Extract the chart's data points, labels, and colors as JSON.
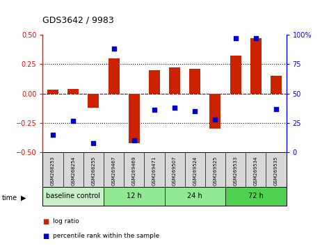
{
  "title": "GDS3642 / 9983",
  "samples": [
    "GSM268253",
    "GSM268254",
    "GSM268255",
    "GSM269467",
    "GSM269469",
    "GSM269471",
    "GSM269507",
    "GSM269524",
    "GSM269525",
    "GSM269533",
    "GSM269534",
    "GSM269535"
  ],
  "log_ratio": [
    0.03,
    0.04,
    -0.12,
    0.3,
    -0.42,
    0.2,
    0.22,
    0.21,
    -0.3,
    0.32,
    0.47,
    0.15
  ],
  "percentile_rank": [
    15,
    27,
    8,
    88,
    10,
    36,
    38,
    35,
    28,
    97,
    97,
    37
  ],
  "groups": [
    {
      "label": "baseline control",
      "start": 0,
      "end": 3
    },
    {
      "label": "12 h",
      "start": 3,
      "end": 6
    },
    {
      "label": "24 h",
      "start": 6,
      "end": 9
    },
    {
      "label": "72 h",
      "start": 9,
      "end": 12
    }
  ],
  "group_colors": [
    "#c8f0c8",
    "#90e890",
    "#90e890",
    "#50d050"
  ],
  "bar_color": "#cc2200",
  "scatter_color": "#0000cc",
  "ylim_left": [
    -0.5,
    0.5
  ],
  "ylim_right": [
    0,
    100
  ],
  "yticks_left": [
    -0.5,
    -0.25,
    0.0,
    0.25,
    0.5
  ],
  "yticks_right": [
    0,
    25,
    50,
    75,
    100
  ],
  "bg_color": "#ffffff",
  "bar_width": 0.55
}
